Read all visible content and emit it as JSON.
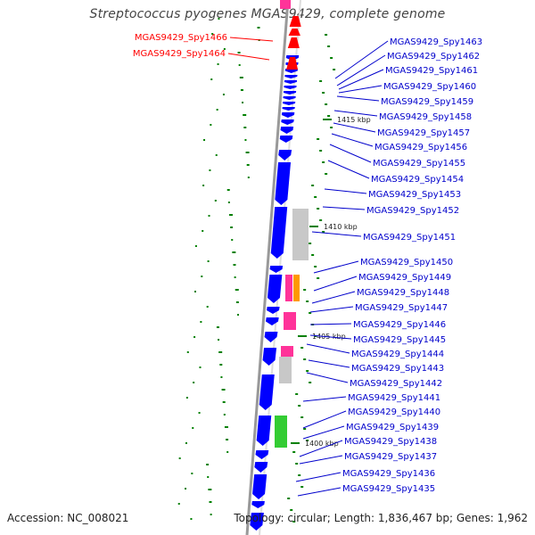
{
  "title": "Streptococcus pyogenes MGAS9429, complete genome",
  "accession": "Accession: NC_008021",
  "stats": "Topology: circular; Length: 1,836,467 bp; Genes: 1,962",
  "colors": {
    "forward_gene": "#ff0000",
    "reverse_gene": "#0000ff",
    "rna": "#c8c8c8",
    "gc_skew": "#008000",
    "label_forward": "#ff0000",
    "label_reverse": "#0000cc",
    "backbone": "#888888"
  },
  "scale_ticks": [
    "1415 kbp",
    "1410 kbp",
    "1405 kbp",
    "1400 kbp"
  ],
  "labels_left": [
    "MGAS9429_Spy1466",
    "MGAS9429_Spy1464"
  ],
  "labels_right": [
    "MGAS9429_Spy1463",
    "MGAS9429_Spy1462",
    "MGAS9429_Spy1461",
    "MGAS9429_Spy1460",
    "MGAS9429_Spy1459",
    "MGAS9429_Spy1458",
    "MGAS9429_Spy1457",
    "MGAS9429_Spy1456",
    "MGAS9429_Spy1455",
    "MGAS9429_Spy1454",
    "MGAS9429_Spy1453",
    "MGAS9429_Spy1452",
    "MGAS9429_Spy1451",
    "MGAS9429_Spy1450",
    "MGAS9429_Spy1449",
    "MGAS9429_Spy1448",
    "MGAS9429_Spy1447",
    "MGAS9429_Spy1446",
    "MGAS9429_Spy1445",
    "MGAS9429_Spy1444",
    "MGAS9429_Spy1443",
    "MGAS9429_Spy1442",
    "MGAS9429_Spy1441",
    "MGAS9429_Spy1440",
    "MGAS9429_Spy1439",
    "MGAS9429_Spy1438",
    "MGAS9429_Spy1437",
    "MGAS9429_Spy1436",
    "MGAS9429_Spy1435"
  ]
}
